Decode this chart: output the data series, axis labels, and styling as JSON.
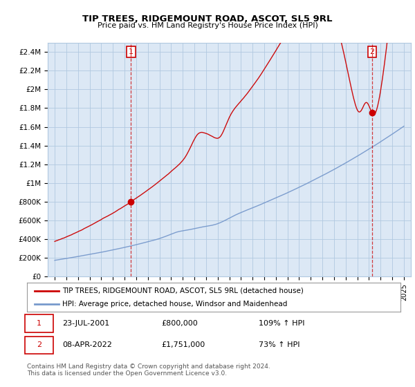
{
  "title": "TIP TREES, RIDGEMOUNT ROAD, ASCOT, SL5 9RL",
  "subtitle": "Price paid vs. HM Land Registry's House Price Index (HPI)",
  "ylabel_ticks": [
    "£0",
    "£200K",
    "£400K",
    "£600K",
    "£800K",
    "£1M",
    "£1.2M",
    "£1.4M",
    "£1.6M",
    "£1.8M",
    "£2M",
    "£2.2M",
    "£2.4M"
  ],
  "ytick_values": [
    0,
    200000,
    400000,
    600000,
    800000,
    1000000,
    1200000,
    1400000,
    1600000,
    1800000,
    2000000,
    2200000,
    2400000
  ],
  "ylim": [
    0,
    2500000
  ],
  "legend_line1": "TIP TREES, RIDGEMOUNT ROAD, ASCOT, SL5 9RL (detached house)",
  "legend_line2": "HPI: Average price, detached house, Windsor and Maidenhead",
  "sale1_date": "23-JUL-2001",
  "sale1_price": "£800,000",
  "sale1_hpi": "109% ↑ HPI",
  "sale2_date": "08-APR-2022",
  "sale2_price": "£1,751,000",
  "sale2_hpi": "73% ↑ HPI",
  "footer1": "Contains HM Land Registry data © Crown copyright and database right 2024.",
  "footer2": "This data is licensed under the Open Government Licence v3.0.",
  "red_color": "#cc0000",
  "blue_color": "#7799cc",
  "plot_bg_color": "#dce8f5",
  "background_color": "#ffffff",
  "grid_color": "#b0c8e0",
  "sale1_year": 2001.55,
  "sale1_value": 800000,
  "sale2_year": 2022.27,
  "sale2_value": 1751000
}
